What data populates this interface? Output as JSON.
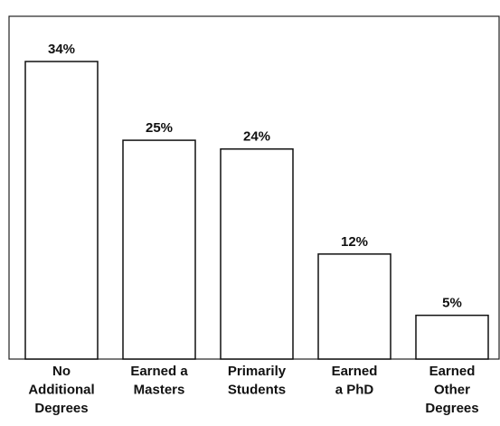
{
  "chart_data": {
    "type": "bar",
    "categories": [
      [
        "No",
        "Additional",
        "Degrees"
      ],
      [
        "Earned a",
        "Masters"
      ],
      [
        "Primarily",
        "Students"
      ],
      [
        "Earned",
        "a PhD"
      ],
      [
        "Earned",
        "Other",
        "Degrees"
      ]
    ],
    "values": [
      34,
      25,
      24,
      12,
      5
    ],
    "value_labels": [
      "34%",
      "25%",
      "24%",
      "12%",
      "5%"
    ],
    "color": "#ffffff"
  }
}
